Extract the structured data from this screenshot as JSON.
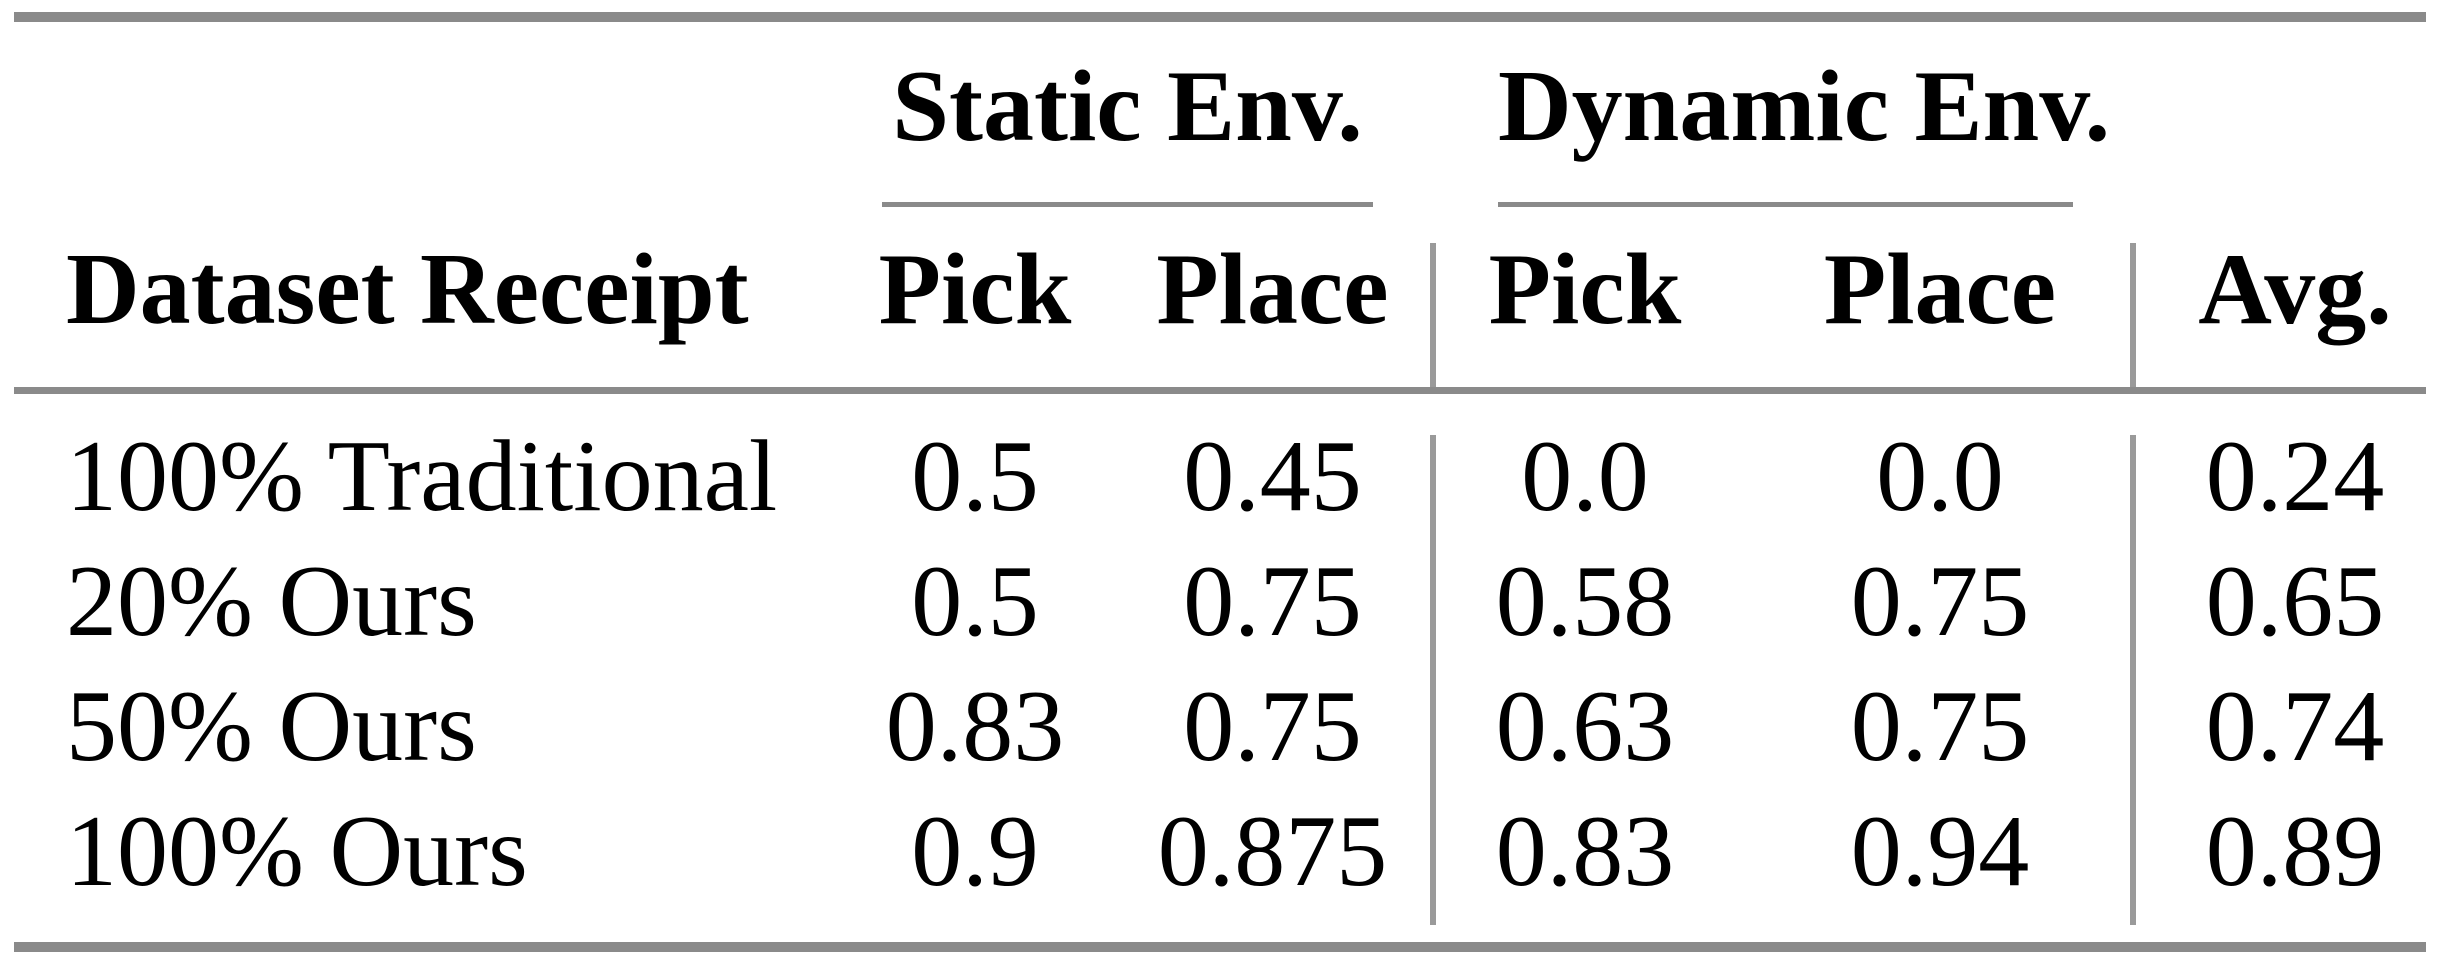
{
  "table": {
    "groups": [
      "Static Env.",
      "Dynamic Env."
    ],
    "columns": [
      "Dataset Receipt",
      "Pick",
      "Place",
      "Pick",
      "Place",
      "Avg."
    ],
    "rows": [
      [
        "100% Traditional",
        "0.5",
        "0.45",
        "0.0",
        "0.0",
        "0.24"
      ],
      [
        "20% Ours",
        "0.5",
        "0.75",
        "0.58",
        "0.75",
        "0.65"
      ],
      [
        "50% Ours",
        "0.83",
        "0.75",
        "0.63",
        "0.75",
        "0.74"
      ],
      [
        "100% Ours",
        "0.9",
        "0.875",
        "0.83",
        "0.94",
        "0.89"
      ]
    ],
    "colors": {
      "horizontal_rule": "#8a8a8a",
      "vertical_rule": "#9a9a9a",
      "text": "#000000",
      "background": "#ffffff"
    }
  }
}
